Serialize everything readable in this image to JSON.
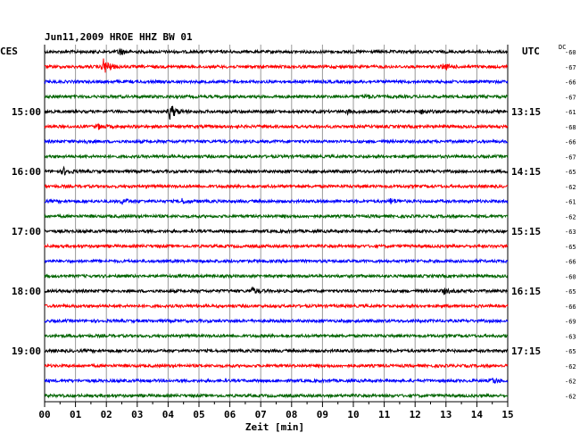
{
  "chart_data": {
    "type": "line",
    "title": "Jun11,2009   HROE HHZ BW 01",
    "xlabel": "Zeit [min]",
    "left_axis_title": "CES",
    "right_axis_title": "UTC",
    "dc_header": "DC",
    "xlim": [
      0,
      15
    ],
    "x_ticks": [
      "00",
      "01",
      "02",
      "03",
      "04",
      "05",
      "06",
      "07",
      "08",
      "09",
      "10",
      "11",
      "12",
      "13",
      "14",
      "15"
    ],
    "left_hour_labels": [
      {
        "trace": 4,
        "label": "15:00"
      },
      {
        "trace": 8,
        "label": "16:00"
      },
      {
        "trace": 12,
        "label": "17:00"
      },
      {
        "trace": 16,
        "label": "18:00"
      },
      {
        "trace": 20,
        "label": "19:00"
      }
    ],
    "right_hour_labels": [
      {
        "trace": 4,
        "label": "13:15"
      },
      {
        "trace": 8,
        "label": "14:15"
      },
      {
        "trace": 12,
        "label": "15:15"
      },
      {
        "trace": 16,
        "label": "16:15"
      },
      {
        "trace": 20,
        "label": "17:15"
      }
    ],
    "trace_colors": [
      "#000000",
      "#ff0000",
      "#0000ff",
      "#006400"
    ],
    "dc_offsets": [
      "-60",
      "-67",
      "-66",
      "-67",
      "-61",
      "-68",
      "-66",
      "-67",
      "-65",
      "-62",
      "-61",
      "-62",
      "-63",
      "-65",
      "-66",
      "-60",
      "-65",
      "-66",
      "-69",
      "-63",
      "-65",
      "-62",
      "-62",
      "-62"
    ],
    "events": [
      {
        "trace": 0,
        "minute": 2.4,
        "amplitude": 4
      },
      {
        "trace": 1,
        "minute": 1.9,
        "amplitude": 9
      },
      {
        "trace": 1,
        "minute": 12.9,
        "amplitude": 3
      },
      {
        "trace": 3,
        "minute": 10.4,
        "amplitude": 2
      },
      {
        "trace": 4,
        "minute": 4.05,
        "amplitude": 9
      },
      {
        "trace": 4,
        "minute": 9.8,
        "amplitude": 2
      },
      {
        "trace": 4,
        "minute": 12.2,
        "amplitude": 2
      },
      {
        "trace": 5,
        "minute": 1.7,
        "amplitude": 3
      },
      {
        "trace": 6,
        "minute": 1.2,
        "amplitude": 2
      },
      {
        "trace": 8,
        "minute": 0.6,
        "amplitude": 4
      },
      {
        "trace": 10,
        "minute": 2.5,
        "amplitude": 3
      },
      {
        "trace": 10,
        "minute": 4.4,
        "amplitude": 3
      },
      {
        "trace": 10,
        "minute": 11.2,
        "amplitude": 3
      },
      {
        "trace": 16,
        "minute": 6.7,
        "amplitude": 4
      },
      {
        "trace": 16,
        "minute": 12.9,
        "amplitude": 3
      },
      {
        "trace": 22,
        "minute": 14.5,
        "amplitude": 3
      }
    ]
  }
}
